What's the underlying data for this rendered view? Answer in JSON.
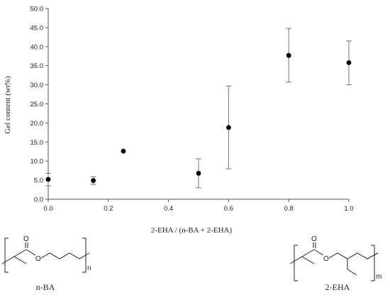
{
  "chart_data": {
    "type": "scatter",
    "xlabel": "2-EHA / (n-BA + 2-EHA)",
    "ylabel": "Gel content (wt%)",
    "xlim": [
      0,
      1.0
    ],
    "ylim": [
      0,
      50
    ],
    "x_ticks": [
      "0.0",
      "0.2",
      "0.4",
      "0.6",
      "0.8",
      "1.0"
    ],
    "y_ticks": [
      "0.0",
      "5.0",
      "10.0",
      "15.0",
      "20.0",
      "25.0",
      "30.0",
      "35.0",
      "40.0",
      "45.0",
      "50.0"
    ],
    "grid": false,
    "legend": false,
    "points": [
      {
        "x": 0.0,
        "y": 5.2,
        "err_low": 3.5,
        "err_high": 6.8
      },
      {
        "x": 0.15,
        "y": 4.9,
        "err_low": 3.9,
        "err_high": 5.9
      },
      {
        "x": 0.25,
        "y": 12.6,
        "err_low": 12.6,
        "err_high": 12.6
      },
      {
        "x": 0.5,
        "y": 6.8,
        "err_low": 3.0,
        "err_high": 10.6
      },
      {
        "x": 0.6,
        "y": 18.8,
        "err_low": 8.0,
        "err_high": 29.7
      },
      {
        "x": 0.8,
        "y": 37.7,
        "err_low": 30.7,
        "err_high": 44.8
      },
      {
        "x": 1.0,
        "y": 35.8,
        "err_low": 30.0,
        "err_high": 41.5
      }
    ]
  },
  "structures": {
    "left": {
      "name": "n-BA",
      "subscript": "n",
      "oxygen": "O"
    },
    "right": {
      "name": "2-EHA",
      "subscript": "m",
      "oxygen": "O"
    }
  }
}
